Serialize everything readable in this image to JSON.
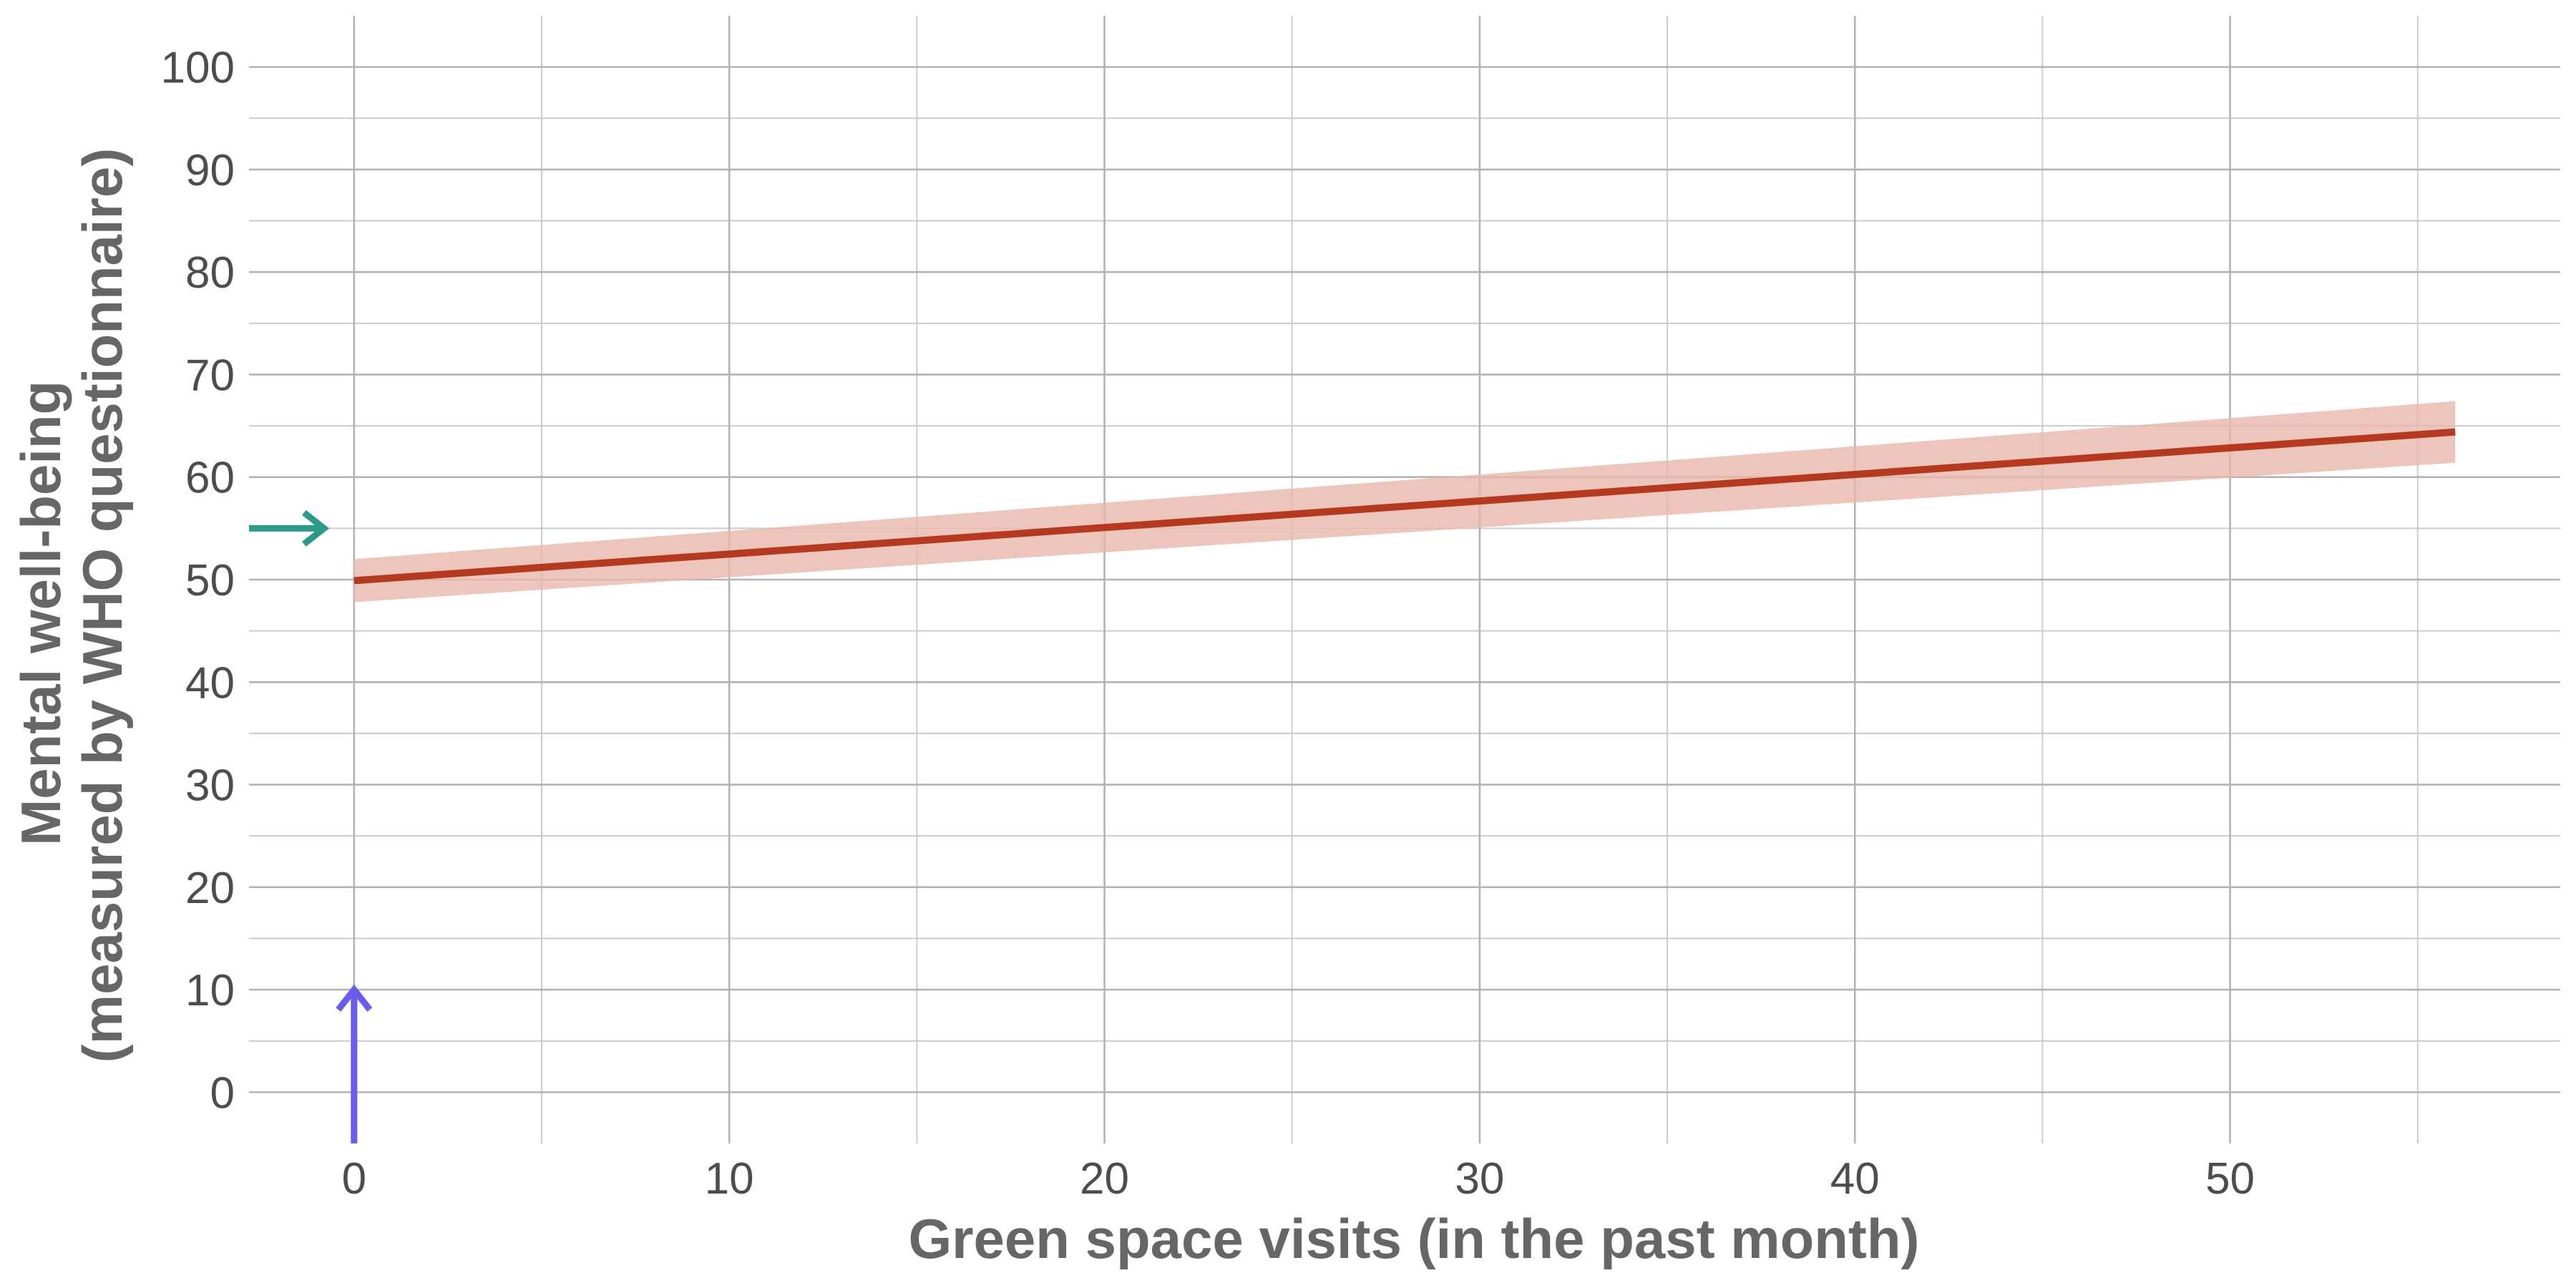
{
  "chart_data": {
    "type": "line",
    "title": "",
    "xlabel": "Green space visits (in the past month)",
    "ylabel_lines": [
      "Mental well-being",
      "(measured by WHO questionnaire)"
    ],
    "xlim": [
      -2.8,
      58.8
    ],
    "ylim": [
      -5,
      105
    ],
    "x_ticks": [
      0,
      10,
      20,
      30,
      40,
      50
    ],
    "x_minor_ticks": [
      5,
      15,
      25,
      35,
      45,
      55
    ],
    "y_ticks": [
      0,
      10,
      20,
      30,
      40,
      50,
      60,
      70,
      80,
      90,
      100
    ],
    "y_minor_ticks": [
      5,
      15,
      25,
      35,
      45,
      55,
      65,
      75,
      85,
      95
    ],
    "grid": true,
    "highlight_x_tick": 0,
    "series": [
      {
        "x": [
          0,
          56
        ],
        "y": [
          49.9,
          64.4
        ],
        "ci_lower": [
          47.8,
          61.4
        ],
        "ci_upper": [
          52.0,
          67.4
        ]
      }
    ],
    "annotations": [
      {
        "kind": "arrow",
        "direction": "up",
        "x": 0,
        "y_from": -5,
        "y_to": 10
      },
      {
        "kind": "arrow",
        "direction": "right",
        "y": 55,
        "x_from": -2.8,
        "x_to": -0.8
      }
    ],
    "colors": {
      "line": "#b5391f",
      "ribbon": "#e8b7ab",
      "x_arrow": "#6b5cf0",
      "y_arrow": "#2b9a86",
      "highlight_tick": "#6b5cf0"
    }
  }
}
